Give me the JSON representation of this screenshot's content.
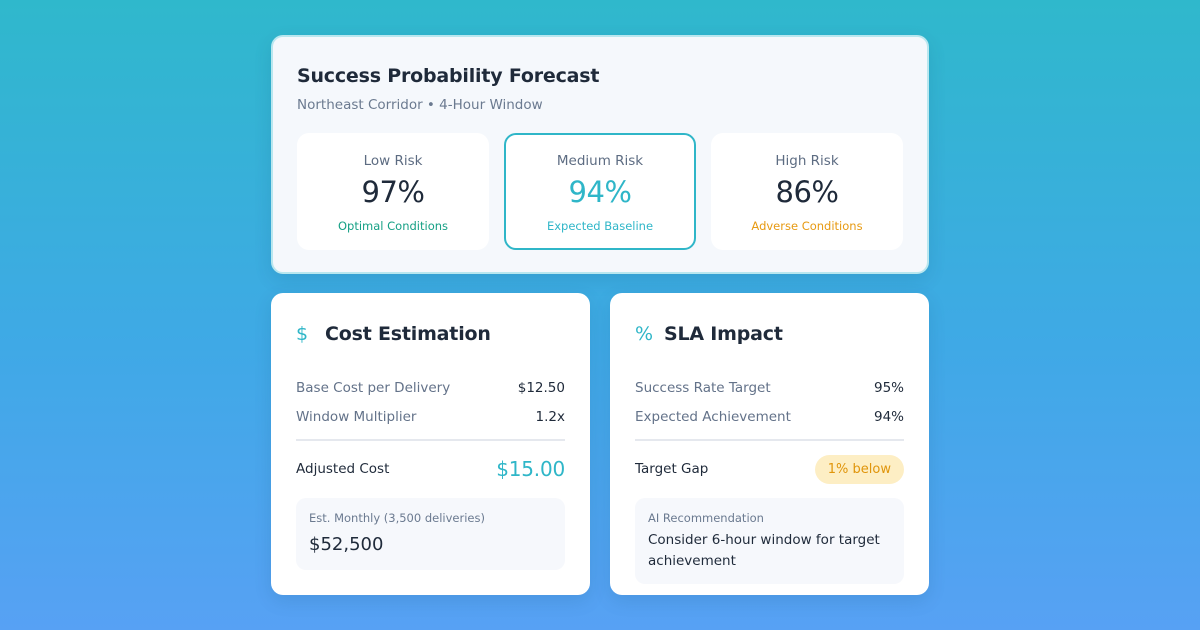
{
  "forecast": {
    "title": "Success Probability Forecast",
    "subtitle": "Northeast Corridor • 4-Hour Window",
    "tiles": [
      {
        "label": "Low Risk",
        "value": "97%",
        "note": "Optimal Conditions",
        "note_color": "#16a085"
      },
      {
        "label": "Medium Risk",
        "value": "94%",
        "note": "Expected Baseline",
        "note_color": "#2fb6c8"
      },
      {
        "label": "High Risk",
        "value": "86%",
        "note": "Adverse Conditions",
        "note_color": "#e79a12"
      }
    ],
    "selected_tile": "Medium Risk"
  },
  "cost": {
    "icon": "dollar-icon",
    "icon_glyph": "$",
    "title": "Cost Estimation",
    "rows": [
      {
        "label": "Base Cost per Delivery",
        "value": "$12.50"
      },
      {
        "label": "Window Multiplier",
        "value": "1.2x"
      }
    ],
    "total_label": "Adjusted Cost",
    "total_value": "$15.00",
    "monthly_caption": "Est. Monthly (3,500 deliveries)",
    "monthly_value": "$52,500"
  },
  "sla": {
    "icon": "percent-icon",
    "icon_glyph": "%",
    "title": "SLA Impact",
    "rows": [
      {
        "label": "Success Rate Target",
        "value": "95%"
      },
      {
        "label": "Expected Achievement",
        "value": "94%"
      }
    ],
    "gap_label": "Target Gap",
    "gap_badge": "1% below",
    "recommendation_caption": "AI Recommendation",
    "recommendation_text": "Consider 6-hour window for target achievement"
  },
  "colors": {
    "accent": "#2fb6c8",
    "success": "#16a085",
    "warning": "#e79a12",
    "badge_bg": "#fdeec4"
  }
}
